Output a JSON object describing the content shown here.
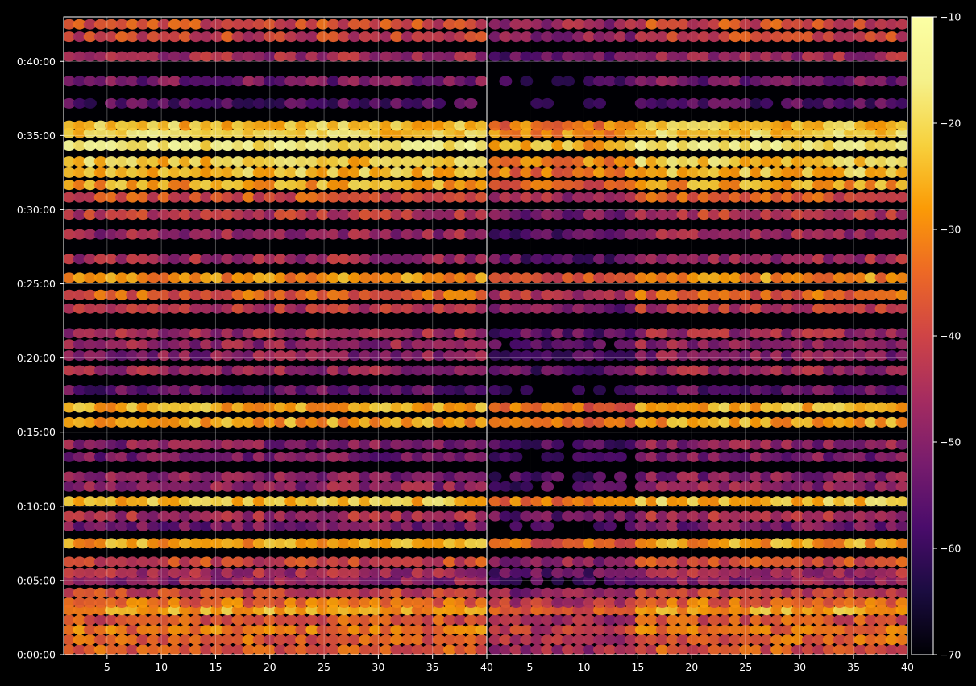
{
  "chart_data": {
    "type": "heatmap",
    "title": "",
    "xlabel": "",
    "ylabel": "",
    "panels": [
      {
        "name": "",
        "x_range": [
          1,
          40
        ],
        "x_ticks": [
          5,
          10,
          15,
          20,
          25,
          30,
          35,
          40
        ]
      },
      {
        "name": "",
        "x_range": [
          1,
          40
        ],
        "x_ticks": [
          5,
          10,
          15,
          20,
          25,
          30,
          35,
          40
        ]
      }
    ],
    "y_range_seconds": [
      0,
      2580
    ],
    "y_ticks": [
      {
        "value": 0,
        "label": "0:00:00"
      },
      {
        "value": 300,
        "label": "0:05:00"
      },
      {
        "value": 600,
        "label": "0:10:00"
      },
      {
        "value": 900,
        "label": "0:15:00"
      },
      {
        "value": 1200,
        "label": "0:20:00"
      },
      {
        "value": 1500,
        "label": "0:25:00"
      },
      {
        "value": 1800,
        "label": "0:30:00"
      },
      {
        "value": 2100,
        "label": "0:35:00"
      },
      {
        "value": 2400,
        "label": "0:40:00"
      }
    ],
    "grid": true,
    "colormap": "inferno",
    "colorbar": {
      "range": [
        -70,
        -10
      ],
      "ticks": [
        -10,
        -20,
        -30,
        -40,
        -50,
        -60,
        -70
      ],
      "tick_labels": [
        "−10",
        "−20",
        "−30",
        "−40",
        "−50",
        "−60",
        "−70"
      ]
    },
    "bands": [
      {
        "t": 20,
        "level": 0.55
      },
      {
        "t": 60,
        "level": 0.58
      },
      {
        "t": 100,
        "level": 0.62
      },
      {
        "t": 140,
        "level": 0.55
      },
      {
        "t": 180,
        "level": 0.72
      },
      {
        "t": 210,
        "level": 0.6
      },
      {
        "t": 250,
        "level": 0.5
      },
      {
        "t": 300,
        "level": 0.35
      },
      {
        "t": 330,
        "level": 0.4
      },
      {
        "t": 375,
        "level": 0.52
      },
      {
        "t": 450,
        "level": 0.72
      },
      {
        "t": 520,
        "level": 0.3
      },
      {
        "t": 560,
        "level": 0.42
      },
      {
        "t": 620,
        "level": 0.78
      },
      {
        "t": 680,
        "level": 0.35
      },
      {
        "t": 720,
        "level": 0.33
      },
      {
        "t": 800,
        "level": 0.3
      },
      {
        "t": 850,
        "level": 0.34
      },
      {
        "t": 940,
        "level": 0.72
      },
      {
        "t": 1000,
        "level": 0.75
      },
      {
        "t": 1070,
        "level": 0.25
      },
      {
        "t": 1150,
        "level": 0.38
      },
      {
        "t": 1210,
        "level": 0.34
      },
      {
        "t": 1255,
        "level": 0.36
      },
      {
        "t": 1300,
        "level": 0.4
      },
      {
        "t": 1400,
        "level": 0.45
      },
      {
        "t": 1455,
        "level": 0.58
      },
      {
        "t": 1525,
        "level": 0.68
      },
      {
        "t": 1600,
        "level": 0.4
      },
      {
        "t": 1700,
        "level": 0.38
      },
      {
        "t": 1780,
        "level": 0.46
      },
      {
        "t": 1850,
        "level": 0.55
      },
      {
        "t": 1900,
        "level": 0.72
      },
      {
        "t": 1950,
        "level": 0.78
      },
      {
        "t": 1995,
        "level": 0.8
      },
      {
        "t": 2060,
        "level": 0.9
      },
      {
        "t": 2110,
        "level": 0.82
      },
      {
        "t": 2140,
        "level": 0.78
      },
      {
        "t": 2230,
        "level": 0.22
      },
      {
        "t": 2320,
        "level": 0.3
      },
      {
        "t": 2420,
        "level": 0.4
      },
      {
        "t": 2500,
        "level": 0.5
      },
      {
        "t": 2550,
        "level": 0.52
      }
    ]
  }
}
